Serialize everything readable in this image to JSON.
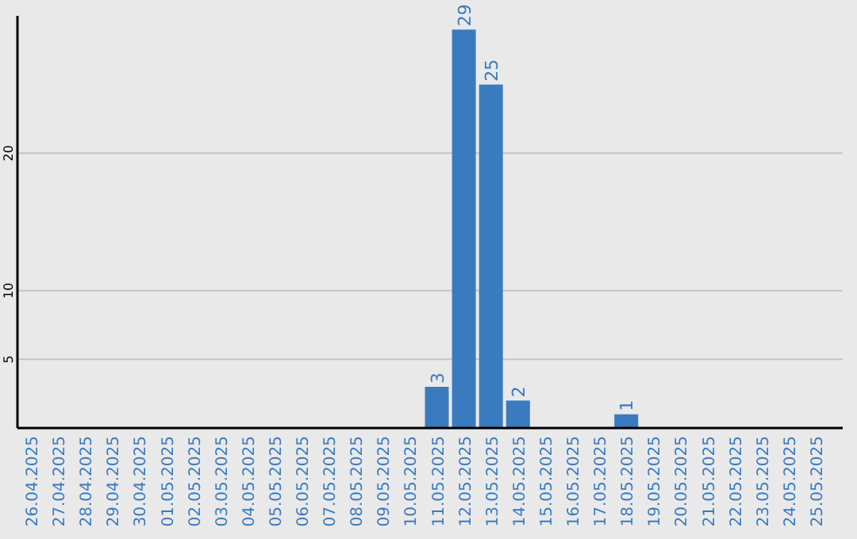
{
  "chart_data": {
    "type": "bar",
    "categories": [
      "26.04.2025",
      "27.04.2025",
      "28.04.2025",
      "29.04.2025",
      "30.04.2025",
      "01.05.2025",
      "02.05.2025",
      "03.05.2025",
      "04.05.2025",
      "05.05.2025",
      "06.05.2025",
      "07.05.2025",
      "08.05.2025",
      "09.05.2025",
      "10.05.2025",
      "11.05.2025",
      "12.05.2025",
      "13.05.2025",
      "14.05.2025",
      "15.05.2025",
      "16.05.2025",
      "17.05.2025",
      "18.05.2025",
      "19.05.2025",
      "20.05.2025",
      "21.05.2025",
      "22.05.2025",
      "23.05.2025",
      "24.05.2025",
      "25.05.2025"
    ],
    "values": [
      0,
      0,
      0,
      0,
      0,
      0,
      0,
      0,
      0,
      0,
      0,
      0,
      0,
      0,
      0,
      3,
      29,
      25,
      2,
      0,
      0,
      0,
      1,
      0,
      0,
      0,
      0,
      0,
      0,
      0
    ],
    "value_labels": [
      null,
      null,
      null,
      null,
      null,
      null,
      null,
      null,
      null,
      null,
      null,
      null,
      null,
      null,
      null,
      "3",
      "29",
      "25",
      "2",
      null,
      null,
      null,
      "1",
      null,
      null,
      null,
      null,
      null,
      null,
      null
    ],
    "color": "#3a7bbf",
    "ylim": [
      0,
      30
    ],
    "yticks": [
      5,
      10,
      20
    ],
    "grid": "y"
  }
}
